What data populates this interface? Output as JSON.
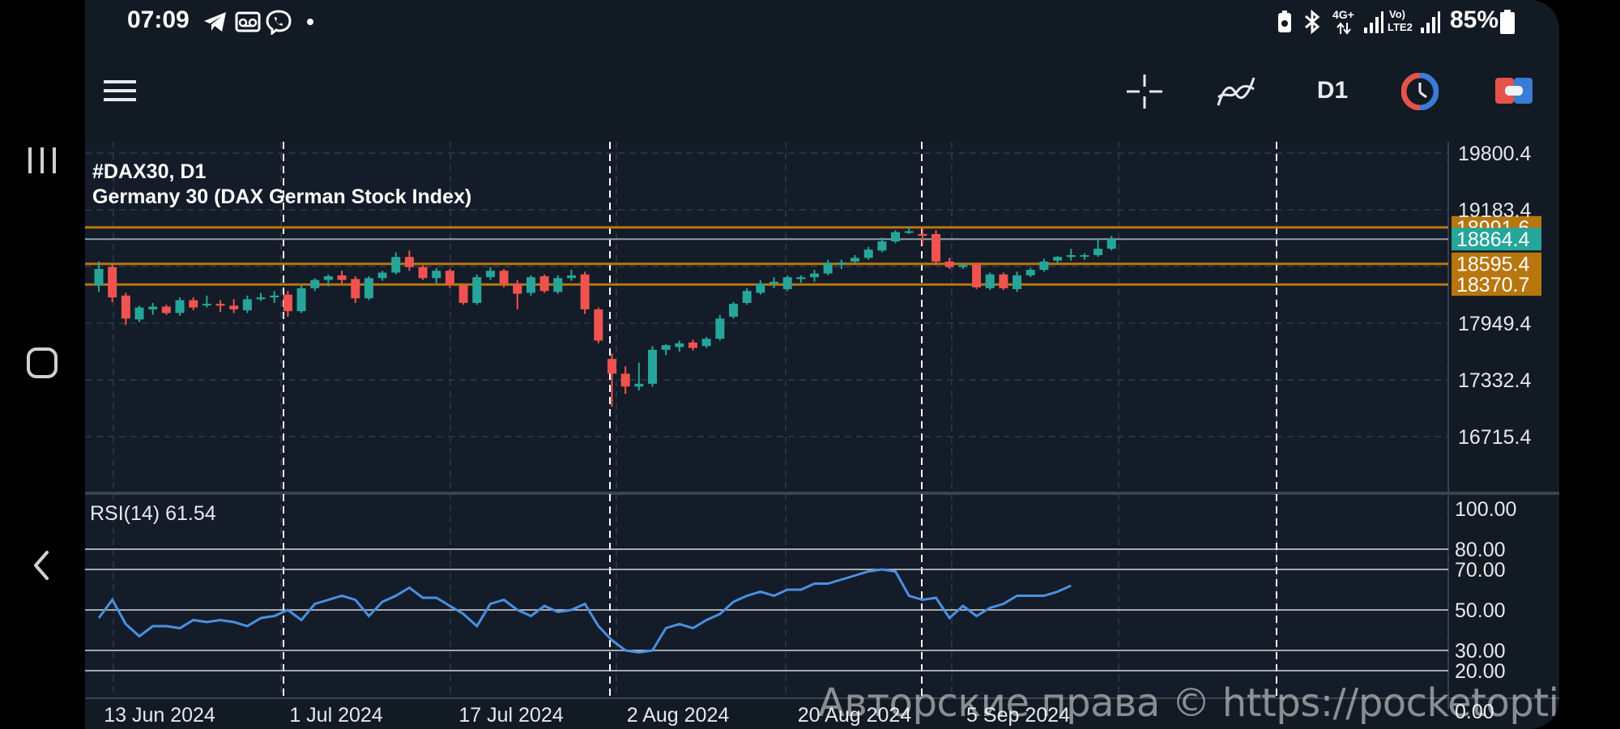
{
  "status_bar": {
    "time": "07:09",
    "network_label_top": "4G+",
    "volte_label_top": "Vo)",
    "volte_label_bottom": "LTE2",
    "battery": "85%"
  },
  "toolbar": {
    "timeframe": "D1",
    "icons": [
      "menu-icon",
      "crosshair-icon",
      "indicators-icon",
      "timer-icon",
      "toggle-icon"
    ]
  },
  "chart": {
    "symbol_title": "#DAX30, D1",
    "instrument_name": "Germany 30 (DAX German Stock Index)",
    "price_axis_labels": [
      "19800.4",
      "19183.4",
      "17949.4",
      "17332.4",
      "16715.4"
    ],
    "price_markers": [
      {
        "label": "18991.6",
        "value": 18991.6,
        "color": "#b8760e",
        "line_color": "#b8760e"
      },
      {
        "label": "18864.4",
        "value": 18864.4,
        "color": "#26a69a",
        "line_color": "#8fa0aa"
      },
      {
        "label": "18595.4",
        "value": 18595.4,
        "color": "#b8760e",
        "line_color": "#b8760e"
      },
      {
        "label": "18370.7",
        "value": 18370.7,
        "color": "#b8760e",
        "line_color": "#b8760e"
      }
    ],
    "date_labels": [
      "13 Jun 2024",
      "1 Jul 2024",
      "17 Jul 2024",
      "2 Aug 2024",
      "20 Aug 2024",
      "5 Sep 2024"
    ],
    "up_color": "#26a69a",
    "down_color": "#ef5350",
    "candles": [
      {
        "o": 18360,
        "h": 18620,
        "l": 18290,
        "c": 18540
      },
      {
        "o": 18560,
        "h": 18600,
        "l": 18180,
        "c": 18230
      },
      {
        "o": 18250,
        "h": 18280,
        "l": 17930,
        "c": 18000
      },
      {
        "o": 17990,
        "h": 18140,
        "l": 17960,
        "c": 18120
      },
      {
        "o": 18100,
        "h": 18170,
        "l": 18040,
        "c": 18130
      },
      {
        "o": 18130,
        "h": 18150,
        "l": 18040,
        "c": 18060
      },
      {
        "o": 18060,
        "h": 18230,
        "l": 18030,
        "c": 18200
      },
      {
        "o": 18200,
        "h": 18230,
        "l": 18090,
        "c": 18120
      },
      {
        "o": 18150,
        "h": 18250,
        "l": 18120,
        "c": 18160
      },
      {
        "o": 18160,
        "h": 18200,
        "l": 18070,
        "c": 18140
      },
      {
        "o": 18140,
        "h": 18210,
        "l": 18060,
        "c": 18100
      },
      {
        "o": 18090,
        "h": 18250,
        "l": 18060,
        "c": 18210
      },
      {
        "o": 18210,
        "h": 18280,
        "l": 18190,
        "c": 18230
      },
      {
        "o": 18230,
        "h": 18300,
        "l": 18170,
        "c": 18250
      },
      {
        "o": 18260,
        "h": 18300,
        "l": 18020,
        "c": 18080
      },
      {
        "o": 18080,
        "h": 18360,
        "l": 18060,
        "c": 18330
      },
      {
        "o": 18330,
        "h": 18440,
        "l": 18300,
        "c": 18420
      },
      {
        "o": 18420,
        "h": 18480,
        "l": 18350,
        "c": 18460
      },
      {
        "o": 18470,
        "h": 18520,
        "l": 18380,
        "c": 18420
      },
      {
        "o": 18430,
        "h": 18460,
        "l": 18170,
        "c": 18220
      },
      {
        "o": 18220,
        "h": 18460,
        "l": 18200,
        "c": 18440
      },
      {
        "o": 18440,
        "h": 18520,
        "l": 18410,
        "c": 18500
      },
      {
        "o": 18500,
        "h": 18720,
        "l": 18480,
        "c": 18670
      },
      {
        "o": 18670,
        "h": 18740,
        "l": 18520,
        "c": 18560
      },
      {
        "o": 18560,
        "h": 18580,
        "l": 18420,
        "c": 18440
      },
      {
        "o": 18440,
        "h": 18550,
        "l": 18380,
        "c": 18520
      },
      {
        "o": 18520,
        "h": 18540,
        "l": 18330,
        "c": 18370
      },
      {
        "o": 18360,
        "h": 18380,
        "l": 18150,
        "c": 18170
      },
      {
        "o": 18170,
        "h": 18480,
        "l": 18150,
        "c": 18450
      },
      {
        "o": 18450,
        "h": 18560,
        "l": 18420,
        "c": 18520
      },
      {
        "o": 18520,
        "h": 18540,
        "l": 18340,
        "c": 18380
      },
      {
        "o": 18380,
        "h": 18420,
        "l": 18100,
        "c": 18270
      },
      {
        "o": 18280,
        "h": 18470,
        "l": 18250,
        "c": 18450
      },
      {
        "o": 18460,
        "h": 18480,
        "l": 18280,
        "c": 18300
      },
      {
        "o": 18290,
        "h": 18470,
        "l": 18270,
        "c": 18440
      },
      {
        "o": 18440,
        "h": 18530,
        "l": 18410,
        "c": 18470
      },
      {
        "o": 18480,
        "h": 18510,
        "l": 18050,
        "c": 18100
      },
      {
        "o": 18100,
        "h": 18120,
        "l": 17730,
        "c": 17760
      },
      {
        "o": 17560,
        "h": 17620,
        "l": 17040,
        "c": 17400
      },
      {
        "o": 17400,
        "h": 17480,
        "l": 17180,
        "c": 17260
      },
      {
        "o": 17260,
        "h": 17520,
        "l": 17220,
        "c": 17290
      },
      {
        "o": 17290,
        "h": 17700,
        "l": 17260,
        "c": 17660
      },
      {
        "o": 17660,
        "h": 17720,
        "l": 17600,
        "c": 17710
      },
      {
        "o": 17690,
        "h": 17760,
        "l": 17640,
        "c": 17730
      },
      {
        "o": 17740,
        "h": 17770,
        "l": 17650,
        "c": 17680
      },
      {
        "o": 17700,
        "h": 17800,
        "l": 17680,
        "c": 17780
      },
      {
        "o": 17780,
        "h": 18040,
        "l": 17760,
        "c": 18000
      },
      {
        "o": 18020,
        "h": 18180,
        "l": 18000,
        "c": 18160
      },
      {
        "o": 18170,
        "h": 18330,
        "l": 18150,
        "c": 18300
      },
      {
        "o": 18280,
        "h": 18420,
        "l": 18260,
        "c": 18380
      },
      {
        "o": 18380,
        "h": 18450,
        "l": 18330,
        "c": 18400
      },
      {
        "o": 18320,
        "h": 18470,
        "l": 18300,
        "c": 18450
      },
      {
        "o": 18430,
        "h": 18470,
        "l": 18390,
        "c": 18450
      },
      {
        "o": 18450,
        "h": 18530,
        "l": 18400,
        "c": 18490
      },
      {
        "o": 18490,
        "h": 18640,
        "l": 18470,
        "c": 18600
      },
      {
        "o": 18600,
        "h": 18640,
        "l": 18540,
        "c": 18610
      },
      {
        "o": 18620,
        "h": 18690,
        "l": 18600,
        "c": 18660
      },
      {
        "o": 18660,
        "h": 18780,
        "l": 18640,
        "c": 18750
      },
      {
        "o": 18740,
        "h": 18880,
        "l": 18720,
        "c": 18840
      },
      {
        "o": 18840,
        "h": 18960,
        "l": 18820,
        "c": 18940
      },
      {
        "o": 18940,
        "h": 19000,
        "l": 18920,
        "c": 18950
      },
      {
        "o": 18920,
        "h": 18980,
        "l": 18800,
        "c": 18900
      },
      {
        "o": 18920,
        "h": 18960,
        "l": 18580,
        "c": 18620
      },
      {
        "o": 18620,
        "h": 18660,
        "l": 18540,
        "c": 18560
      },
      {
        "o": 18560,
        "h": 18600,
        "l": 18540,
        "c": 18580
      },
      {
        "o": 18590,
        "h": 18610,
        "l": 18320,
        "c": 18340
      },
      {
        "o": 18330,
        "h": 18500,
        "l": 18310,
        "c": 18480
      },
      {
        "o": 18480,
        "h": 18500,
        "l": 18310,
        "c": 18330
      },
      {
        "o": 18320,
        "h": 18510,
        "l": 18290,
        "c": 18470
      },
      {
        "o": 18470,
        "h": 18550,
        "l": 18450,
        "c": 18530
      },
      {
        "o": 18530,
        "h": 18650,
        "l": 18510,
        "c": 18620
      },
      {
        "o": 18630,
        "h": 18680,
        "l": 18600,
        "c": 18670
      },
      {
        "o": 18670,
        "h": 18760,
        "l": 18630,
        "c": 18690
      },
      {
        "o": 18690,
        "h": 18710,
        "l": 18640,
        "c": 18690
      },
      {
        "o": 18690,
        "h": 18870,
        "l": 18670,
        "c": 18760
      },
      {
        "o": 18760,
        "h": 18900,
        "l": 18740,
        "c": 18864
      }
    ],
    "rsi": {
      "label": "RSI(14) 61.54",
      "axis_labels": [
        "100.00",
        "80.00",
        "70.00",
        "50.00",
        "30.00",
        "20.00",
        "0.00"
      ],
      "levels": [
        80,
        70,
        50,
        30,
        20
      ],
      "line_color": "#4a90e2",
      "values": [
        46,
        55,
        43,
        37,
        42,
        42,
        41,
        45,
        44,
        45,
        44,
        42,
        46,
        47,
        50,
        45,
        53,
        55,
        57,
        55,
        47,
        54,
        57,
        61,
        56,
        56,
        52,
        48,
        42,
        53,
        55,
        50,
        47,
        52,
        49,
        50,
        53,
        42,
        35,
        30,
        29,
        30,
        41,
        43,
        41,
        45,
        48,
        54,
        57,
        59,
        57,
        60,
        60,
        63,
        63,
        65,
        67,
        69,
        70,
        69,
        57,
        55,
        56,
        46,
        52,
        47,
        51,
        53,
        57,
        57,
        57,
        59,
        62
      ]
    }
  },
  "watermark": "Авторские права © https://pocketoption.ru"
}
